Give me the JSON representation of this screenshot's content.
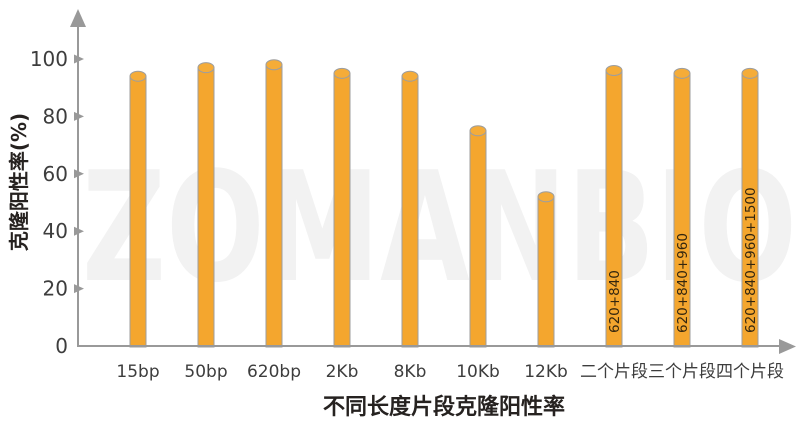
{
  "watermark": "ZOMANBIO",
  "colors": {
    "bar_fill": "#F4A62E",
    "bar_top_fill": "#F5AC38",
    "bar_stroke": "#9E9E9E",
    "axis": "#999999",
    "tick_text": "#3D3D3D",
    "title_text": "#262220",
    "bar_label_text": "#33260F",
    "watermark": "#F2F2F2",
    "background": "#FFFFFF"
  },
  "chart_data": {
    "type": "bar",
    "title": "",
    "xlabel": "不同长度片段克隆阳性率",
    "ylabel": "克隆阳性率(%)",
    "categories": [
      "15bp",
      "50bp",
      "620bp",
      "2Kb",
      "8Kb",
      "10Kb",
      "12Kb",
      "二个片段",
      "三个片段",
      "四个片段"
    ],
    "values": [
      94,
      97,
      98,
      95,
      94,
      75,
      52,
      96,
      95,
      95
    ],
    "bar_labels": [
      "",
      "",
      "",
      "",
      "",
      "",
      "",
      "620+840",
      "620+840+960",
      "620+840+960+1500"
    ],
    "yticks": [
      0,
      20,
      40,
      60,
      80,
      100
    ],
    "ylim": [
      0,
      110
    ],
    "grid": false,
    "legend": null,
    "bar_shape": "cylinder",
    "bar_color": "#F4A62E"
  }
}
